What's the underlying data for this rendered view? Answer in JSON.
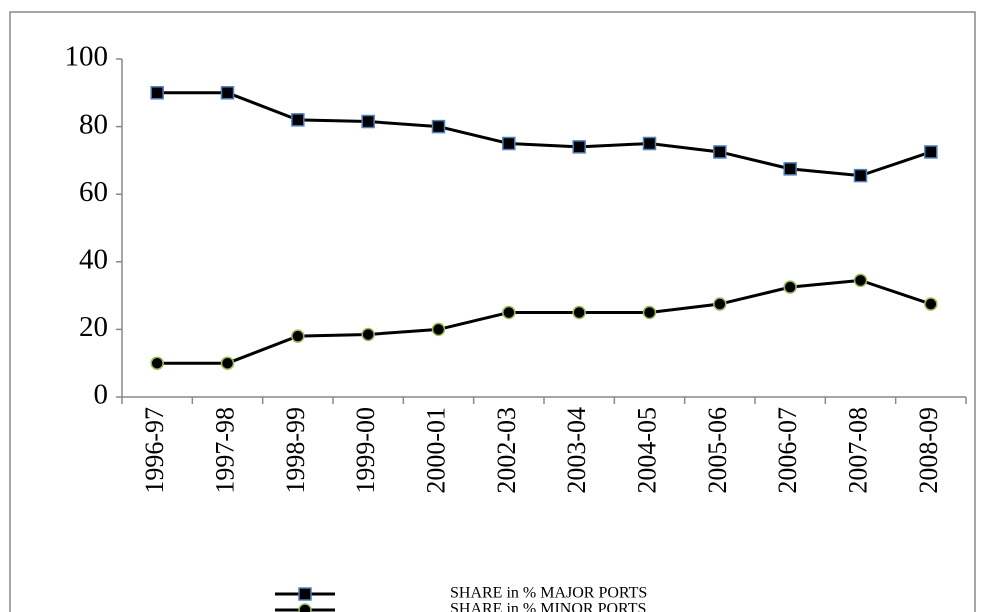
{
  "chart_data": {
    "type": "line",
    "categories": [
      "1996-97",
      "1997-98",
      "1998-99",
      "1999-00",
      "2000-01",
      "2002-03",
      "2003-04",
      "2004-05",
      "2005-06",
      "2006-07",
      "2007-08",
      "2008-09"
    ],
    "series": [
      {
        "name": "SHARE in % MAJOR PORTS",
        "color": "#000000",
        "marker": "square",
        "marker_edge": "#4f81bd",
        "values": [
          90,
          90,
          82,
          81.5,
          80,
          75,
          74,
          75,
          72.5,
          67.5,
          65.5,
          72.5
        ]
      },
      {
        "name": "SHARE in % MINOR PORTS",
        "color": "#000000",
        "marker": "circle",
        "marker_edge": "#9bbb59",
        "values": [
          10,
          10,
          18,
          18.5,
          20,
          25,
          25,
          25,
          27.5,
          32.5,
          34.5,
          27.5
        ]
      }
    ],
    "ylim": [
      0,
      100
    ],
    "yticks": [
      0,
      20,
      40,
      60,
      80,
      100
    ],
    "grid": false,
    "legend": "bottom"
  }
}
